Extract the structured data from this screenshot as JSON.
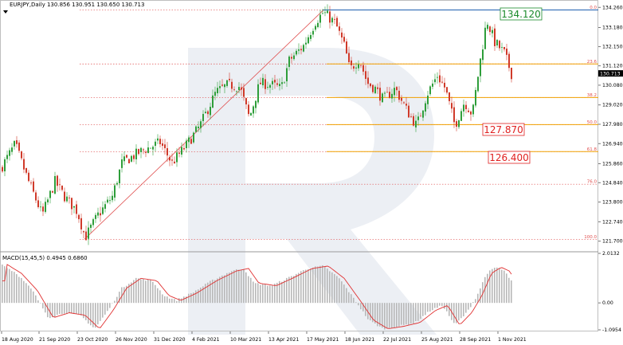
{
  "header": {
    "menu_icon": "triangle-down-icon",
    "symbol_info": "EURJPY,Daily  130.856  130.951  130.650  130.713"
  },
  "macd": {
    "label": "MACD(15,45,5) 0.4945 0.6860",
    "ticks": [
      "2.0132",
      "0.00",
      "-1.0954"
    ]
  },
  "price_axis": {
    "ticks": [
      "134.260",
      "133.180",
      "132.150",
      "131.120",
      "130.080",
      "129.020",
      "127.980",
      "126.940",
      "125.860",
      "124.840",
      "123.800",
      "122.740",
      "121.700"
    ],
    "current_price": "130.713"
  },
  "time_axis": {
    "labels": [
      "18 Aug 2020",
      "21 Sep 2020",
      "23 Oct 2020",
      "26 Nov 2020",
      "31 Dec 2020",
      "4 Feb 2021",
      "10 Mar 2021",
      "13 Apr 2021",
      "17 May 2021",
      "18 Jun 2021",
      "22 Jul 2021",
      "25 Aug 2021",
      "28 Sep 2021",
      "1 Nov 2021"
    ]
  },
  "fibonacci": {
    "levels": [
      {
        "label": "0.0",
        "value": 134.12
      },
      {
        "label": "23.6",
        "value": 131.22
      },
      {
        "label": "38.2",
        "value": 129.42
      },
      {
        "label": "50.0",
        "value": 127.96
      },
      {
        "label": "61.8",
        "value": 126.51
      },
      {
        "label": "76.0",
        "value": 124.76
      },
      {
        "label": "100.0",
        "value": 121.8
      }
    ]
  },
  "targets": [
    {
      "label": "134.120",
      "color": "#1a8a2a"
    },
    {
      "label": "127.870",
      "color": "#e02020"
    },
    {
      "label": "126.400",
      "color": "#e02020"
    }
  ],
  "colors": {
    "bull": "#2e9e3a",
    "bear": "#d03a2a",
    "fib": "#e05050",
    "target_line": "#f0a000",
    "top_line": "#1f5fb0",
    "macd_signal": "#e03030",
    "macd_hist": "#b8b8b8"
  },
  "chart_data": {
    "type": "candlestick",
    "x": [
      "18 Aug 2020",
      "21 Sep 2020",
      "23 Oct 2020",
      "26 Nov 2020",
      "31 Dec 2020",
      "4 Feb 2021",
      "10 Mar 2021",
      "13 Apr 2021",
      "17 May 2021",
      "18 Jun 2021",
      "22 Jul 2021",
      "25 Aug 2021",
      "28 Sep 2021",
      "1 Nov 2021"
    ],
    "close": [
      126.1,
      124.3,
      122.1,
      124.7,
      126.2,
      127.2,
      129.9,
      130.3,
      133.8,
      130.7,
      129.3,
      129.2,
      131.5,
      130.7
    ],
    "ylim": [
      121.3,
      134.4
    ],
    "macd": {
      "histogram": [
        0.55,
        -0.4,
        -0.9,
        0.6,
        0.25,
        0.2,
        0.7,
        0.6,
        1.0,
        0.1,
        -1.0,
        -0.75,
        0.2,
        0.95
      ],
      "ylim": [
        -1.0954,
        2.0132
      ]
    }
  }
}
